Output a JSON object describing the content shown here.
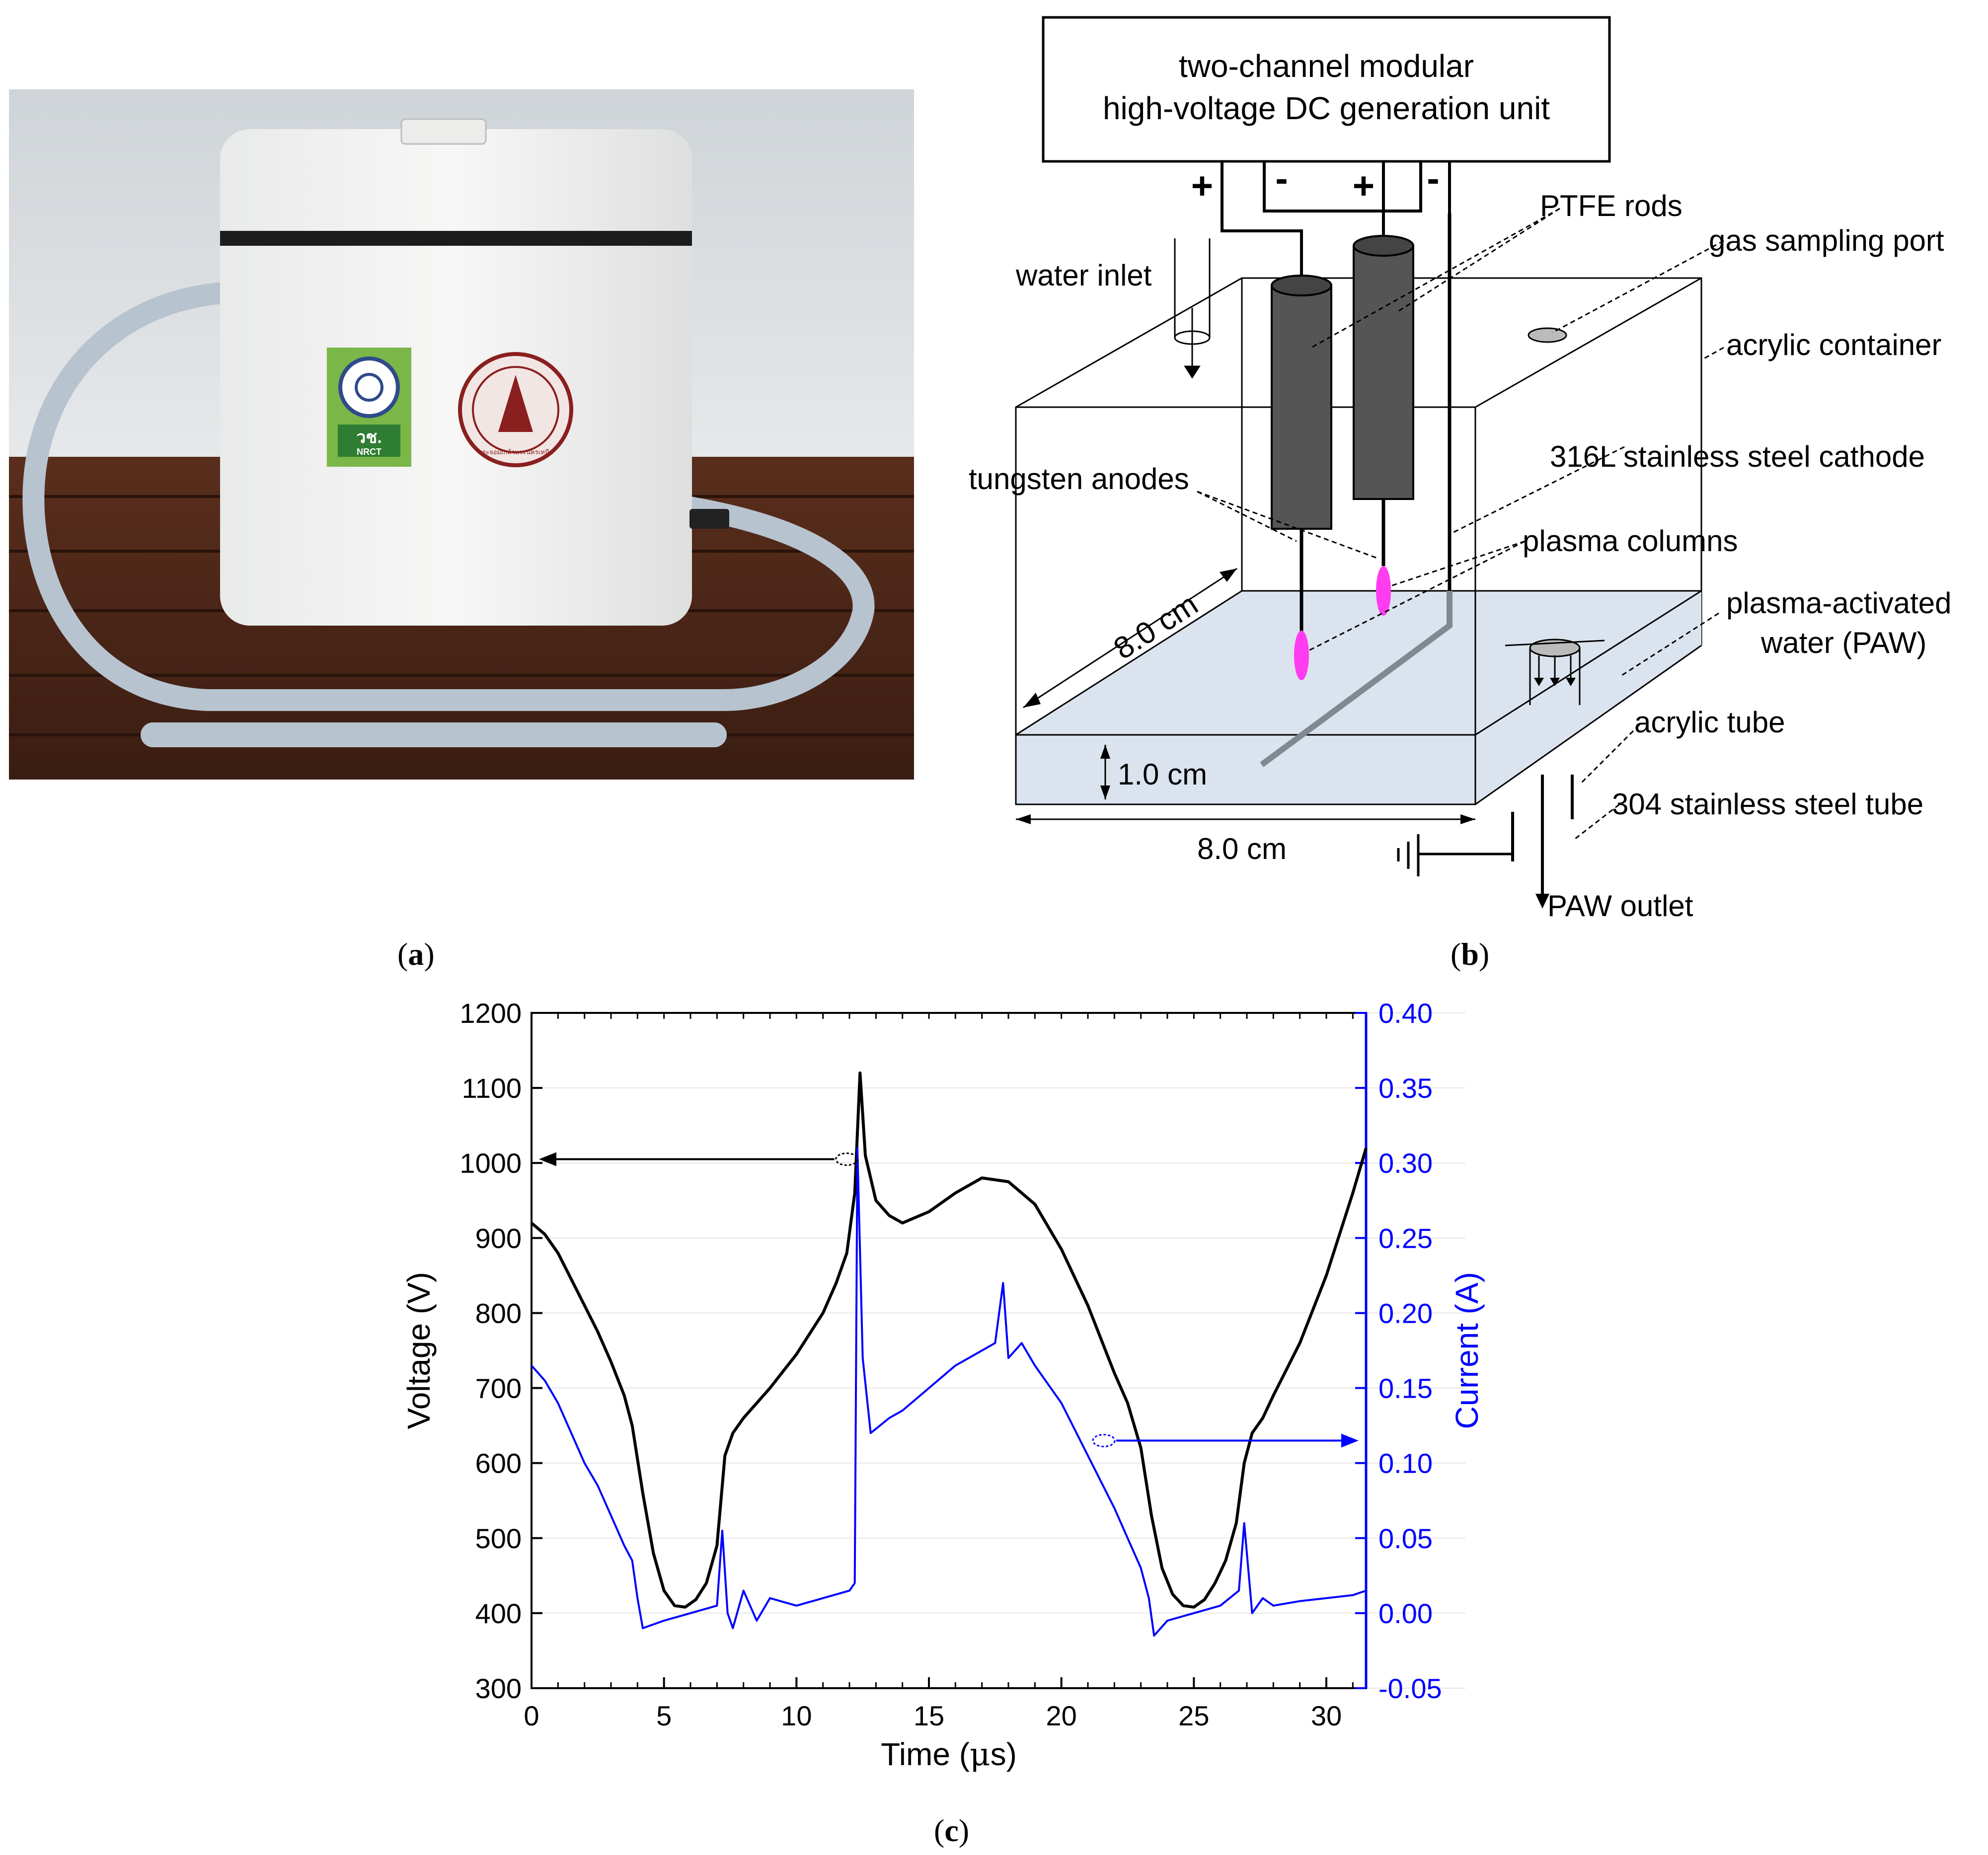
{
  "captions": {
    "a": {
      "open": "(",
      "letter": "a",
      "close": ")"
    },
    "b": {
      "open": "(",
      "letter": "b",
      "close": ")"
    },
    "c": {
      "open": "(",
      "letter": "c",
      "close": ")"
    }
  },
  "photo": {
    "badge_left_text": "วช.",
    "badge_left_sub": "NRCT",
    "seal_text": "พระจอมเกล้าพระนครเหนือ"
  },
  "diagram": {
    "power_unit_line1": "two-channel modular",
    "power_unit_line2": "high-voltage DC generation unit",
    "plus1": "+",
    "minus1": "-",
    "plus2": "+",
    "minus2": "-",
    "water_inlet": "water inlet",
    "ptfe_rods": "PTFE rods",
    "gas_sampling_port": "gas sampling port",
    "acrylic_container": "acrylic container",
    "cathode": "316L stainless steel cathode",
    "tungsten_anodes": "tungsten anodes",
    "plasma_columns": "plasma columns",
    "paw_line1": "plasma-activated",
    "paw_line2": "water (PAW)",
    "acrylic_tube": "acrylic tube",
    "steel_tube": "304 stainless steel tube",
    "paw_outlet": "PAW outlet",
    "depth_dim": "8.0 cm",
    "height_dim": "1.0 cm",
    "width_dim": "8.0 cm",
    "colors": {
      "rod": "#555555",
      "water": "#dbe3ee",
      "plasma": "#ff3cf0"
    }
  },
  "chart_data": {
    "type": "line",
    "xlabel_pre": "Time (",
    "xlabel_mu": "μ",
    "xlabel_post": "s)",
    "ylabel_left": "Voltage (V)",
    "ylabel_right": "Current (A)",
    "xlim": [
      0,
      31.5
    ],
    "ylim_left": [
      300,
      1200
    ],
    "ylim_right": [
      -0.05,
      0.4
    ],
    "x_ticks": [
      "0",
      "5",
      "10",
      "15",
      "20",
      "25",
      "30"
    ],
    "y_left_ticks": [
      "300",
      "400",
      "500",
      "600",
      "700",
      "800",
      "900",
      "1000",
      "1100",
      "1200"
    ],
    "y_right_ticks": [
      "-0.05",
      "0.00",
      "0.05",
      "0.10",
      "0.15",
      "0.20",
      "0.25",
      "0.30",
      "0.35",
      "0.40"
    ],
    "colors": {
      "voltage": "#000000",
      "current": "#0000ff"
    },
    "series": [
      {
        "name": "Voltage",
        "axis": "left",
        "x": [
          0,
          0.5,
          1,
          1.5,
          2,
          2.5,
          3,
          3.5,
          3.8,
          4.2,
          4.6,
          5,
          5.4,
          5.8,
          6.2,
          6.6,
          7,
          7.3,
          7.6,
          8,
          9,
          10,
          11,
          11.5,
          11.9,
          12.2,
          12.4,
          12.6,
          13,
          13.5,
          14,
          15,
          16,
          17,
          18,
          19,
          20,
          21,
          22,
          22.5,
          23,
          23.4,
          23.8,
          24.2,
          24.6,
          25,
          25.4,
          25.8,
          26.2,
          26.6,
          26.9,
          27.2,
          27.6,
          28,
          29,
          30,
          31,
          31.5
        ],
        "values": [
          920,
          905,
          880,
          845,
          810,
          775,
          735,
          690,
          650,
          560,
          480,
          430,
          410,
          408,
          418,
          440,
          490,
          610,
          640,
          660,
          700,
          745,
          800,
          840,
          880,
          960,
          1120,
          1010,
          950,
          930,
          920,
          935,
          960,
          980,
          975,
          945,
          885,
          810,
          720,
          680,
          620,
          530,
          460,
          425,
          410,
          408,
          418,
          440,
          470,
          520,
          600,
          640,
          660,
          690,
          760,
          850,
          960,
          1020
        ]
      },
      {
        "name": "Current",
        "axis": "right",
        "x": [
          0,
          0.5,
          1,
          1.5,
          2,
          2.5,
          3,
          3.5,
          3.8,
          4,
          4.2,
          5,
          6,
          7,
          7.2,
          7.4,
          7.6,
          8,
          8.5,
          9,
          10,
          11,
          12,
          12.2,
          12.3,
          12.5,
          12.8,
          13.5,
          14,
          15,
          16,
          17,
          17.5,
          17.8,
          18,
          18.5,
          19,
          20,
          21,
          22,
          22.5,
          23,
          23.3,
          23.5,
          24,
          25,
          26,
          26.7,
          26.9,
          27.2,
          27.6,
          28,
          29,
          30,
          31,
          31.5
        ],
        "values": [
          0.165,
          0.155,
          0.14,
          0.12,
          0.1,
          0.085,
          0.065,
          0.045,
          0.035,
          0.01,
          -0.01,
          -0.005,
          0.0,
          0.005,
          0.055,
          0.0,
          -0.01,
          0.015,
          -0.005,
          0.01,
          0.005,
          0.01,
          0.015,
          0.02,
          0.31,
          0.17,
          0.12,
          0.13,
          0.135,
          0.15,
          0.165,
          0.175,
          0.18,
          0.22,
          0.17,
          0.18,
          0.165,
          0.14,
          0.105,
          0.07,
          0.05,
          0.03,
          0.01,
          -0.015,
          -0.005,
          0.0,
          0.005,
          0.015,
          0.06,
          0.0,
          0.01,
          0.005,
          0.008,
          0.01,
          0.012,
          0.015
        ]
      }
    ],
    "annotations": [
      {
        "target_series": "Voltage",
        "points_to": "left axis"
      },
      {
        "target_series": "Current",
        "points_to": "right axis"
      }
    ]
  }
}
